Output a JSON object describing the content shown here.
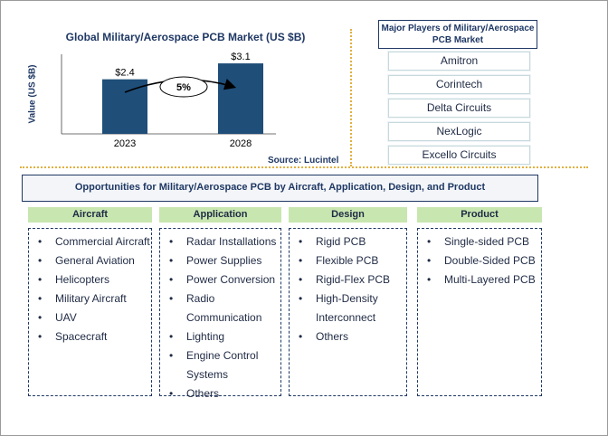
{
  "chart_data": {
    "type": "bar",
    "title": "Global Military/Aerospace PCB Market (US $B)",
    "ylabel": "Value (US $B)",
    "xlabel": "",
    "categories": [
      "2023",
      "2028"
    ],
    "values": [
      2.4,
      3.1
    ],
    "value_labels": [
      "$2.4",
      "$3.1"
    ],
    "ylim": [
      0,
      3.5
    ],
    "cagr_label": "5%",
    "bar_color": "#1f4e79",
    "grid": false
  },
  "source": "Source: Lucintel",
  "players": {
    "title": "Major Players of Military/Aerospace PCB Market",
    "items": [
      "Amitron",
      "Corintech",
      "Delta Circuits",
      "NexLogic",
      "Excello Circuits"
    ]
  },
  "opportunities": {
    "title": "Opportunities for Military/Aerospace PCB by Aircraft, Application, Design, and Product",
    "header_color": "#c8e6b0",
    "columns": [
      {
        "title": "Aircraft",
        "items": [
          "Commercial Aircraft",
          "General Aviation",
          "Helicopters",
          "Military Aircraft",
          "UAV",
          "Spacecraft"
        ]
      },
      {
        "title": "Application",
        "items": [
          "Radar Installations",
          "Power Supplies",
          "Power Conversion",
          "Radio Communication",
          "Lighting",
          "Engine Control Systems",
          "Others"
        ]
      },
      {
        "title": "Design",
        "items": [
          "Rigid PCB",
          "Flexible PCB",
          "Rigid-Flex PCB",
          "High-Density Interconnect",
          "Others"
        ]
      },
      {
        "title": "Product",
        "items": [
          "Single-sided PCB",
          "Double-Sided PCB",
          "Multi-Layered PCB"
        ]
      }
    ]
  }
}
